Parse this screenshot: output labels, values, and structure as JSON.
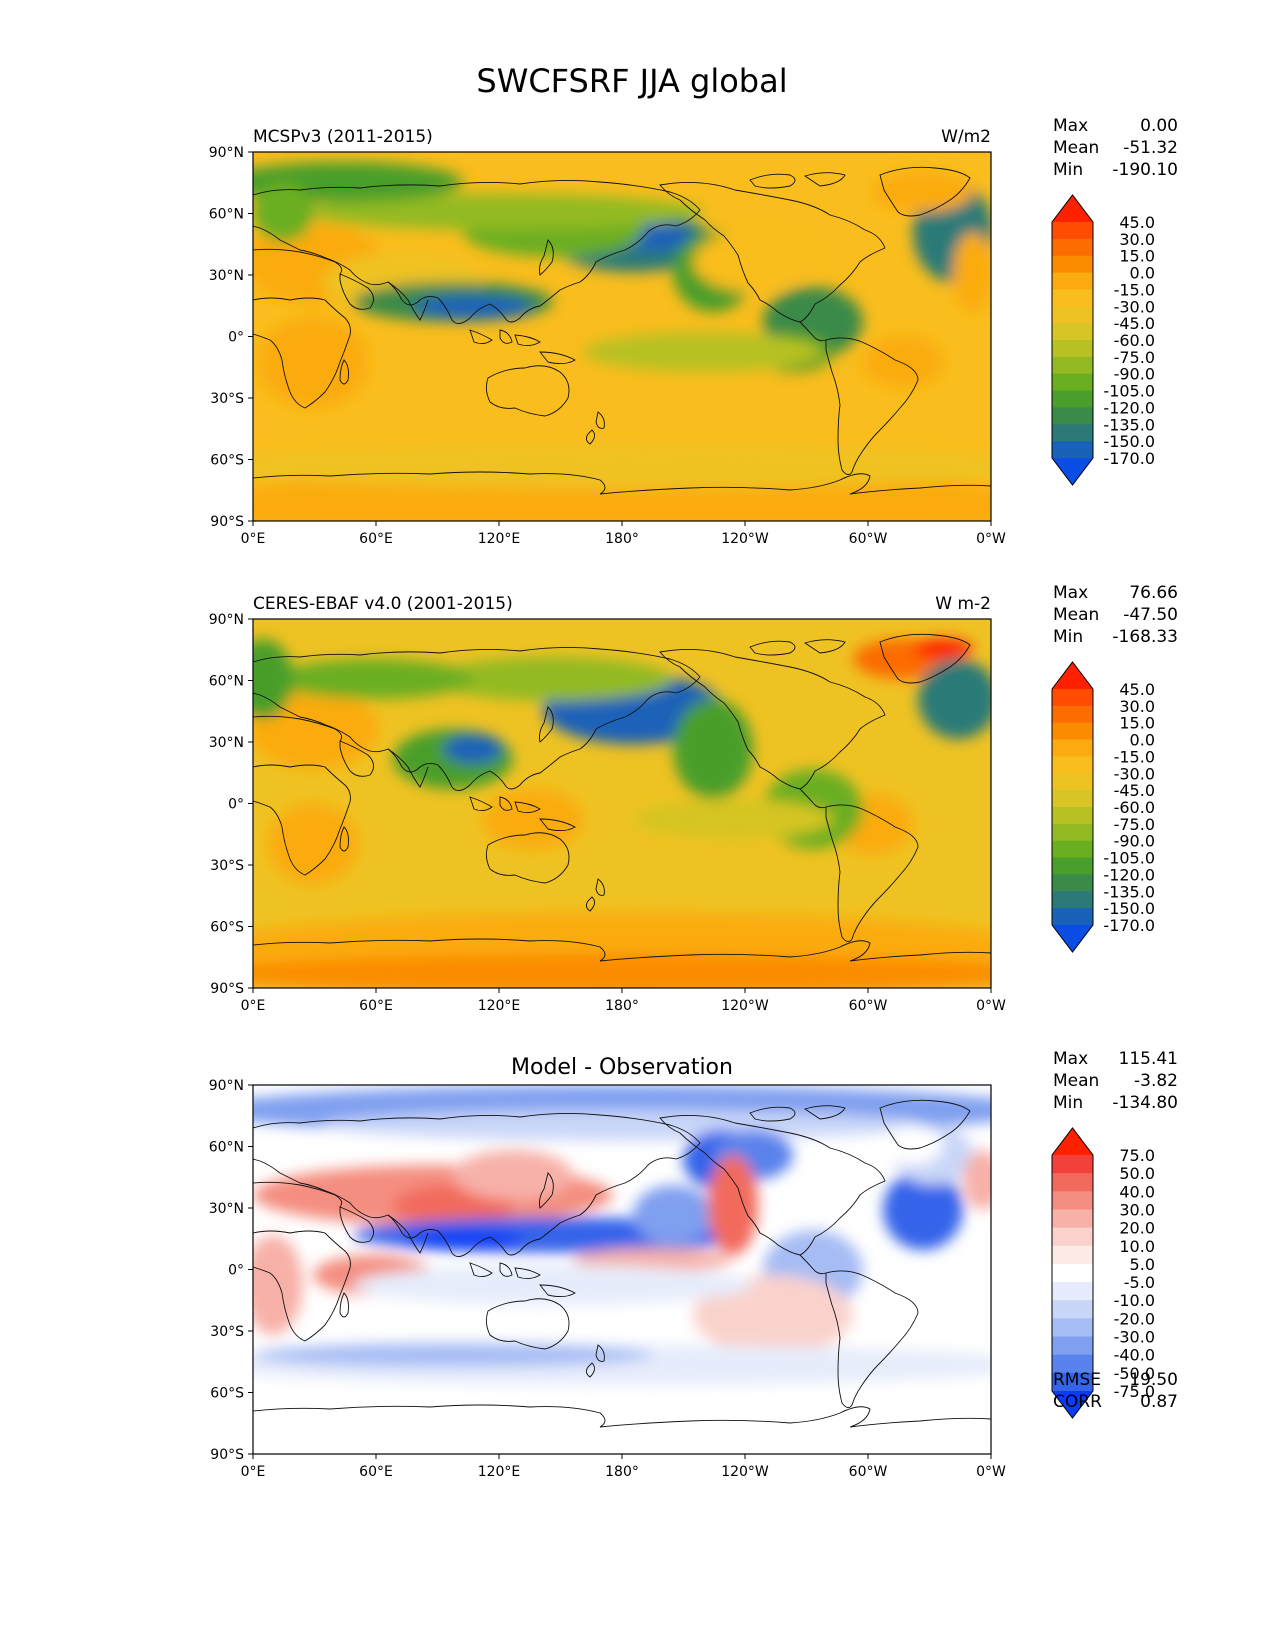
{
  "title": "SWCFSRF JJA global",
  "panels": [
    {
      "left_title": "MCSPv3 (2011-2015)",
      "center_title": "",
      "right_title": "W/m2",
      "stats": [
        [
          "Max",
          "0.00"
        ],
        [
          "Mean",
          "-51.32"
        ],
        [
          "Min",
          "-190.10"
        ]
      ],
      "colorbar": {
        "labels": [
          "45.0",
          "30.0",
          "15.0",
          "0.0",
          "-15.0",
          "-30.0",
          "-45.0",
          "-60.0",
          "-75.0",
          "-90.0",
          "-105.0",
          "-120.0",
          "-135.0",
          "-150.0",
          "-170.0"
        ],
        "colors": [
          "#ff2000",
          "#ff4c00",
          "#fc6c00",
          "#fb8c00",
          "#fbab0f",
          "#f9bd1d",
          "#efc223",
          "#d6c524",
          "#b8c124",
          "#93ba22",
          "#6aae22",
          "#4a9e2c",
          "#3a8a4a",
          "#2c7a78",
          "#1a62b8",
          "#0a4ee6"
        ]
      },
      "extra_stats": []
    },
    {
      "left_title": "CERES-EBAF v4.0 (2001-2015)",
      "center_title": "",
      "right_title": "W m-2",
      "stats": [
        [
          "Max",
          "76.66"
        ],
        [
          "Mean",
          "-47.50"
        ],
        [
          "Min",
          "-168.33"
        ]
      ],
      "colorbar": {
        "labels": [
          "45.0",
          "30.0",
          "15.0",
          "0.0",
          "-15.0",
          "-30.0",
          "-45.0",
          "-60.0",
          "-75.0",
          "-90.0",
          "-105.0",
          "-120.0",
          "-135.0",
          "-150.0",
          "-170.0"
        ],
        "colors": [
          "#ff2000",
          "#ff4c00",
          "#fc6c00",
          "#fb8c00",
          "#fbab0f",
          "#f9bd1d",
          "#efc223",
          "#d6c524",
          "#b8c124",
          "#93ba22",
          "#6aae22",
          "#4a9e2c",
          "#3a8a4a",
          "#2c7a78",
          "#1a62b8",
          "#0a4ee6"
        ]
      },
      "extra_stats": []
    },
    {
      "left_title": "",
      "center_title": "Model - Observation",
      "right_title": "",
      "stats": [
        [
          "Max",
          "115.41"
        ],
        [
          "Mean",
          "-3.82"
        ],
        [
          "Min",
          "-134.80"
        ]
      ],
      "colorbar": {
        "labels": [
          "75.0",
          "50.0",
          "40.0",
          "30.0",
          "20.0",
          "10.0",
          "5.0",
          "-5.0",
          "-10.0",
          "-20.0",
          "-30.0",
          "-40.0",
          "-50.0",
          "-75.0"
        ],
        "colors": [
          "#ff2000",
          "#f4403a",
          "#f26a5c",
          "#f48e80",
          "#f7b1a8",
          "#fad2cc",
          "#fdebe8",
          "#ffffff",
          "#e6ecfb",
          "#c9d6f8",
          "#a6bcf4",
          "#7f9ff0",
          "#5a82ec",
          "#3564ea",
          "#0a3cf6"
        ]
      },
      "extra_stats": [
        [
          "RMSE",
          "19.50"
        ],
        [
          "CORR",
          "0.87"
        ]
      ]
    }
  ],
  "lat_ticks": [
    "90°N",
    "60°N",
    "30°N",
    "0°",
    "30°S",
    "60°S",
    "90°S"
  ],
  "lon_ticks": [
    "0°E",
    "60°E",
    "120°E",
    "180°",
    "120°W",
    "60°W",
    "0°W"
  ]
}
